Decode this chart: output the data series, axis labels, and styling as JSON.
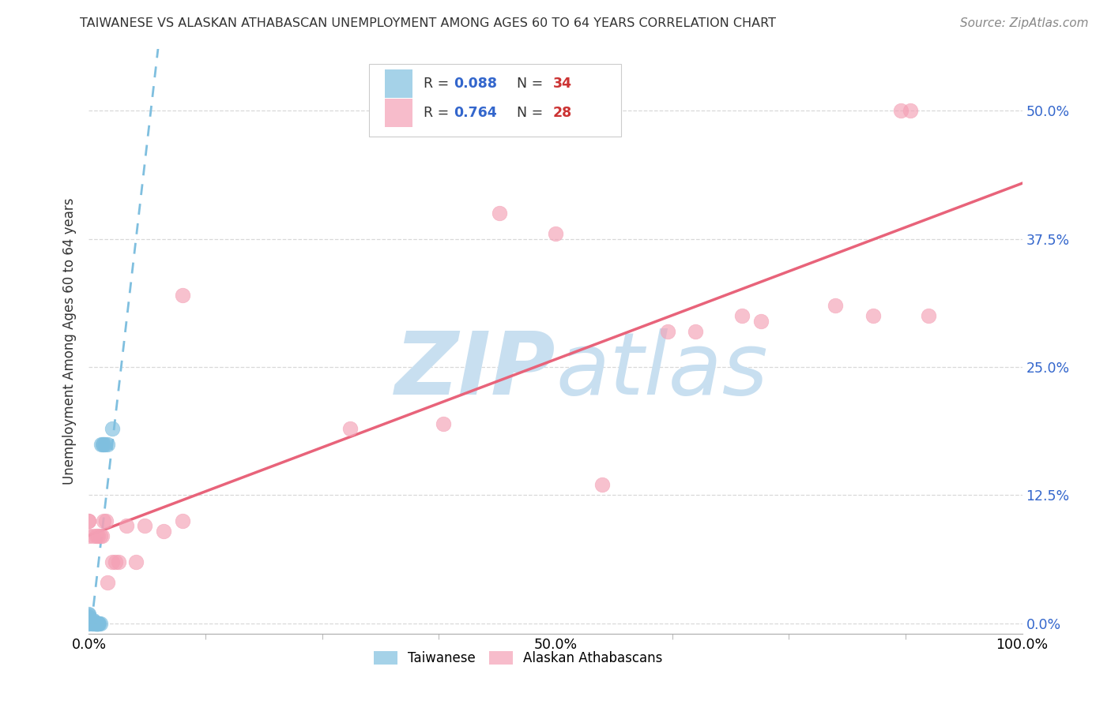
{
  "title": "TAIWANESE VS ALASKAN ATHABASCAN UNEMPLOYMENT AMONG AGES 60 TO 64 YEARS CORRELATION CHART",
  "source": "Source: ZipAtlas.com",
  "ylabel": "Unemployment Among Ages 60 to 64 years",
  "xlim": [
    0,
    1.0
  ],
  "ylim": [
    -0.01,
    0.56
  ],
  "yticks": [
    0.0,
    0.125,
    0.25,
    0.375,
    0.5
  ],
  "ytick_labels": [
    "0.0%",
    "12.5%",
    "25.0%",
    "37.5%",
    "50.0%"
  ],
  "xtick_positions": [
    0.0,
    0.5,
    1.0
  ],
  "xtick_labels": [
    "0.0%",
    "50.0%",
    "100.0%"
  ],
  "taiwanese_color": "#7fbfdf",
  "athabascan_color": "#f4a0b5",
  "taiwanese_line_color": "#7fbfdf",
  "athabascan_line_color": "#e8637a",
  "legend_R_color": "#3366cc",
  "legend_N_color": "#cc3333",
  "taiwanese_x": [
    0.0,
    0.0,
    0.0,
    0.0,
    0.0,
    0.0,
    0.0,
    0.0,
    0.0,
    0.0,
    0.0,
    0.004,
    0.004,
    0.005,
    0.005,
    0.006,
    0.006,
    0.007,
    0.007,
    0.008,
    0.008,
    0.009,
    0.009,
    0.01,
    0.01,
    0.01,
    0.011,
    0.012,
    0.013,
    0.015,
    0.016,
    0.017,
    0.02,
    0.025
  ],
  "taiwanese_y": [
    0.0,
    0.0,
    0.002,
    0.003,
    0.003,
    0.005,
    0.005,
    0.006,
    0.007,
    0.008,
    0.009,
    0.0,
    0.0,
    0.002,
    0.003,
    0.0,
    0.0,
    0.0,
    0.0,
    0.0,
    0.0,
    0.0,
    0.0,
    0.0,
    0.0,
    0.0,
    0.0,
    0.0,
    0.175,
    0.175,
    0.175,
    0.175,
    0.175,
    0.19
  ],
  "athabascan_x": [
    0.0,
    0.0,
    0.0,
    0.005,
    0.008,
    0.01,
    0.012,
    0.014,
    0.016,
    0.018,
    0.02,
    0.025,
    0.028,
    0.032,
    0.04,
    0.05,
    0.06,
    0.08,
    0.1,
    0.1,
    0.28,
    0.38,
    0.44,
    0.5,
    0.55,
    0.62,
    0.65,
    0.7,
    0.72,
    0.8,
    0.84,
    0.87,
    0.88,
    0.9
  ],
  "athabascan_y": [
    0.085,
    0.1,
    0.1,
    0.085,
    0.085,
    0.085,
    0.085,
    0.085,
    0.1,
    0.1,
    0.04,
    0.06,
    0.06,
    0.06,
    0.095,
    0.06,
    0.095,
    0.09,
    0.1,
    0.32,
    0.19,
    0.195,
    0.4,
    0.38,
    0.135,
    0.285,
    0.285,
    0.3,
    0.295,
    0.31,
    0.3,
    0.5,
    0.5,
    0.3
  ],
  "background_color": "#ffffff",
  "grid_color": "#d0d0d0",
  "watermark_color": "#c8dff0",
  "watermark_font_size": 80
}
